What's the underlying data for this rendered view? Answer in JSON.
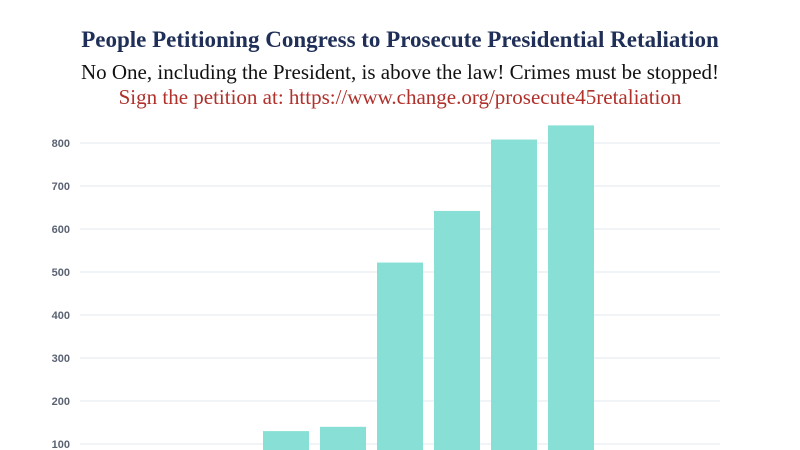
{
  "header": {
    "title": "People Petitioning Congress to Prosecute Presidential Retaliation",
    "subtitle": "No One, including the President, is above the law!  Crimes must be stopped!",
    "petition_line": "Sign the petition at: https://www.change.org/prosecute45retaliation"
  },
  "colors": {
    "bar": "#88dfd6",
    "grid": "#e3e8ee",
    "title": "#1f2f57",
    "petition": "#b0302a"
  },
  "chart_data": {
    "type": "bar",
    "title": "People Petitioning Congress to Prosecute Presidential Retaliation",
    "xlabel": "",
    "ylabel": "",
    "yticks": [
      100,
      200,
      300,
      400,
      500,
      600,
      700,
      800
    ],
    "grid": true,
    "values": [
      130,
      140,
      522,
      642,
      808,
      841
    ]
  }
}
